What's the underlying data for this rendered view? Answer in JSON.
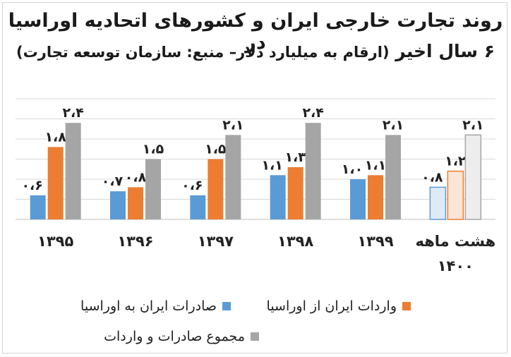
{
  "chart_data": {
    "type": "bar",
    "title_line1": "روند تجارت خارجی ایران و کشورهای اتحادیه اوراسیا در",
    "title_line2_main": "۶ سال اخیر",
    "title_line2_note": "(ارقام به میلیارد دلار– منبع: سازمان توسعه تجارت)",
    "categories": [
      "۱۳۹۵",
      "۱۳۹۶",
      "۱۳۹۷",
      "۱۳۹۸",
      "۱۳۹۹",
      "هشت ماهه ۱۴۰۰"
    ],
    "category_lines": [
      [
        "۱۳۹۵"
      ],
      [
        "۱۳۹۶"
      ],
      [
        "۱۳۹۷"
      ],
      [
        "۱۳۹۸"
      ],
      [
        "۱۳۹۹"
      ],
      [
        "هشت ماهه",
        "۱۴۰۰"
      ]
    ],
    "series": [
      {
        "name": "صادرات ایران به اوراسیا",
        "values": [
          0.6,
          0.7,
          0.6,
          1.1,
          1.0,
          0.8
        ],
        "labels": [
          "۰،۶",
          "۰،۷",
          "۰،۶",
          "۱،۱",
          "۱،۰",
          "۰،۸"
        ],
        "color": "#5b9bd5"
      },
      {
        "name": "واردات ایران از اوراسیا",
        "values": [
          1.8,
          0.8,
          1.5,
          1.3,
          1.1,
          1.2
        ],
        "labels": [
          "۱،۸",
          "۰،۸",
          "۱،۵",
          "۱،۳",
          "۱،۱",
          "۱،۲"
        ],
        "color": "#ed7d31"
      },
      {
        "name": "مجموع صادرات و واردات",
        "values": [
          2.4,
          1.5,
          2.1,
          2.4,
          2.1,
          2.1
        ],
        "labels": [
          "۲،۴",
          "۱،۵",
          "۲،۱",
          "۲،۴",
          "۲،۱",
          "۲،۱"
        ],
        "color": "#a5a5a5"
      }
    ],
    "ylim": [
      0,
      3.0
    ],
    "grid": true,
    "legend_position": "bottom"
  }
}
